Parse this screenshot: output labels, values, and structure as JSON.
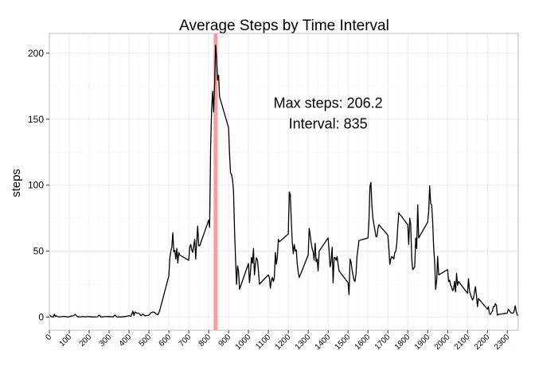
{
  "chart_data": {
    "type": "line",
    "title": "Average Steps by Time Interval",
    "xlabel": "",
    "ylabel": "steps",
    "xlim": [
      0,
      2355
    ],
    "ylim": [
      -10,
      215
    ],
    "x_ticks": [
      0,
      100,
      200,
      300,
      400,
      500,
      600,
      700,
      800,
      900,
      1000,
      1100,
      1200,
      1300,
      1400,
      1500,
      1600,
      1700,
      1800,
      1900,
      2000,
      2100,
      2200,
      2300
    ],
    "x_tick_labels": [
      "0",
      "100",
      "200",
      "300",
      "400",
      "500",
      "600",
      "700",
      "800",
      "900",
      "1000",
      "1100",
      "1200",
      "1300",
      "1400",
      "1500",
      "1600",
      "1700",
      "1800",
      "1900",
      "2000",
      "2100",
      "2200",
      "2300"
    ],
    "y_ticks": [
      0,
      50,
      100,
      150,
      200
    ],
    "y_tick_labels": [
      "0",
      "50",
      "100",
      "150",
      "200"
    ],
    "grid": true,
    "highlight": {
      "x": 835,
      "color": "#f4a0a0"
    },
    "annotation": {
      "line1": "Max steps: 206.2",
      "line2": "Interval: 835",
      "x": 1400,
      "y_top": 155
    },
    "line_color": "#000000",
    "series": [
      {
        "x": [
          0,
          10,
          20,
          25,
          30,
          35,
          40,
          50,
          60,
          70,
          80,
          90,
          100,
          110,
          120,
          130,
          140,
          150,
          160,
          170,
          180,
          190,
          200,
          220,
          240,
          250,
          260,
          280,
          300,
          320,
          330,
          340,
          350,
          360,
          380,
          400,
          410,
          420,
          425,
          430,
          440,
          450,
          460,
          470,
          480,
          500,
          510,
          520,
          530,
          535,
          540,
          545,
          550,
          555,
          600,
          605,
          610,
          615,
          620,
          625,
          630,
          635,
          640,
          645,
          650,
          655,
          700,
          705,
          710,
          715,
          720,
          725,
          730,
          735,
          740,
          745,
          750,
          755,
          800,
          805,
          810,
          815,
          820,
          825,
          830,
          835,
          840,
          845,
          850,
          855,
          900,
          905,
          910,
          915,
          920,
          925,
          930,
          935,
          940,
          945,
          950,
          955,
          1000,
          1005,
          1010,
          1015,
          1020,
          1025,
          1030,
          1035,
          1040,
          1045,
          1050,
          1055,
          1100,
          1105,
          1110,
          1115,
          1120,
          1125,
          1130,
          1135,
          1140,
          1145,
          1150,
          1155,
          1200,
          1205,
          1210,
          1215,
          1220,
          1225,
          1230,
          1235,
          1240,
          1245,
          1250,
          1255,
          1300,
          1305,
          1310,
          1315,
          1320,
          1325,
          1330,
          1335,
          1340,
          1345,
          1350,
          1355,
          1400,
          1405,
          1410,
          1415,
          1420,
          1425,
          1430,
          1435,
          1440,
          1445,
          1450,
          1455,
          1500,
          1505,
          1510,
          1515,
          1520,
          1525,
          1530,
          1535,
          1540,
          1545,
          1550,
          1555,
          1600,
          1605,
          1610,
          1615,
          1620,
          1625,
          1630,
          1635,
          1640,
          1645,
          1650,
          1655,
          1700,
          1705,
          1710,
          1715,
          1720,
          1725,
          1730,
          1735,
          1740,
          1745,
          1750,
          1755,
          1800,
          1805,
          1810,
          1815,
          1820,
          1825,
          1830,
          1835,
          1840,
          1845,
          1850,
          1855,
          1900,
          1905,
          1910,
          1915,
          1920,
          1925,
          1930,
          1935,
          1940,
          1945,
          1950,
          1955,
          2000,
          2005,
          2010,
          2015,
          2020,
          2025,
          2030,
          2035,
          2040,
          2045,
          2050,
          2055,
          2100,
          2105,
          2110,
          2115,
          2120,
          2125,
          2130,
          2135,
          2140,
          2145,
          2150,
          2155,
          2200,
          2205,
          2210,
          2215,
          2220,
          2225,
          2230,
          2235,
          2240,
          2245,
          2250,
          2255,
          2300,
          2305,
          2310,
          2315,
          2320,
          2325,
          2330,
          2335,
          2340,
          2345,
          2350,
          2355
        ],
        "y": [
          1.7,
          0.3,
          0.1,
          2.1,
          0.5,
          1.1,
          0.3,
          0.2,
          0.3,
          0.5,
          0.4,
          0.1,
          0.3,
          0.8,
          0.9,
          2.0,
          0.4,
          0.2,
          0.2,
          0.5,
          0.2,
          0.3,
          0.4,
          0.1,
          0.2,
          1.4,
          0.1,
          0.3,
          0.4,
          0.2,
          1.5,
          0.1,
          0.2,
          0.1,
          0.4,
          1.0,
          0.6,
          4.4,
          1.1,
          3.9,
          2.9,
          3.0,
          1.0,
          2.2,
          1.0,
          1.4,
          3.2,
          3.9,
          3.5,
          2.4,
          2.0,
          1.8,
          3.4,
          5.4,
          31.2,
          44.5,
          50.0,
          53.0,
          63.9,
          49.4,
          50.6,
          44.0,
          52.0,
          41.0,
          49.0,
          47.0,
          43.0,
          53.0,
          55.0,
          51.0,
          49.0,
          54.0,
          59.0,
          44.0,
          57.0,
          69.0,
          54.0,
          54.0,
          73.4,
          68.0,
          129.4,
          157.5,
          171.2,
          155.4,
          177.3,
          206.2,
          195.9,
          179.6,
          183.4,
          167.0,
          143.5,
          124.0,
          109.1,
          108.1,
          103.7,
          95.9,
          66.2,
          45.2,
          24.8,
          38.8,
          34.9,
          21.1,
          40.6,
          26.1,
          34.3,
          45.2,
          40.8,
          52.0,
          32.0,
          40.0,
          45.0,
          43.0,
          35.0,
          25.0,
          32.0,
          30.0,
          22.0,
          28.0,
          30.0,
          27.0,
          30.0,
          49.0,
          40.0,
          46.0,
          59.0,
          57.0,
          63.0,
          94.9,
          93.0,
          73.0,
          57.0,
          48.0,
          55.0,
          50.0,
          51.0,
          40.0,
          34.0,
          30.0,
          47.0,
          67.3,
          62.0,
          56.0,
          52.0,
          49.0,
          43.0,
          56.0,
          42.0,
          44.0,
          35.0,
          50.0,
          60.0,
          50.0,
          38.0,
          42.0,
          53.0,
          26.0,
          45.0,
          45.0,
          43.0,
          46.0,
          40.0,
          35.0,
          26.0,
          17.0,
          44.0,
          42.0,
          36.0,
          32.0,
          28.0,
          27.0,
          33.0,
          46.0,
          52.0,
          58.0,
          60.0,
          72.0,
          99.0,
          102.1,
          84.0,
          75.0,
          70.0,
          66.0,
          61.0,
          61.0,
          67.0,
          70.0,
          62.0,
          52.0,
          40.0,
          44.0,
          46.0,
          45.0,
          44.0,
          49.0,
          50.0,
          56.0,
          69.0,
          79.0,
          70.0,
          55.0,
          75.0,
          70.0,
          44.0,
          36.0,
          37.0,
          38.0,
          60.0,
          52.0,
          85.0,
          60.0,
          72.0,
          80.0,
          99.5,
          86.0,
          85.0,
          72.0,
          53.0,
          41.0,
          21.0,
          28.0,
          46.0,
          32.0,
          36.0,
          27.0,
          28.0,
          24.0,
          23.0,
          20.0,
          21.0,
          27.0,
          19.0,
          33.0,
          24.0,
          27.0,
          18.0,
          29.0,
          20.0,
          17.0,
          15.0,
          13.0,
          14.0,
          19.0,
          23.0,
          16.0,
          8.0,
          14.0,
          6.0,
          8.0,
          2.5,
          2.0,
          3.5,
          4.5,
          8.0,
          7.8,
          10.0,
          9.0,
          1.5,
          2.0,
          3.0,
          6.0,
          5.0,
          4.0,
          3.0,
          3.0,
          3.0,
          5.0,
          8.5,
          4.0,
          1.5,
          1.1
        ]
      }
    ]
  }
}
